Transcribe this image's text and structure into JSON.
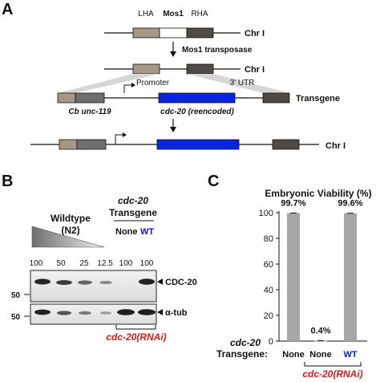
{
  "panelA": {
    "letter": "A",
    "lha": "LHA",
    "mos1": "Mos1",
    "rha": "RHA",
    "chr1_top": "Chr I",
    "transposase": "Mos1 transposase",
    "chr1_mid": "Chr I",
    "promoter": "Promoter",
    "utr": "3' UTR",
    "transgene": "Transgene",
    "cb_unc": "Cb unc-119",
    "cdc20_reenc": "cdc-20 (reencoded)",
    "chr1_bottom": "Chr I"
  },
  "panelB": {
    "letter": "B",
    "wildtype": "Wildtype",
    "n2": "(N2)",
    "cdc20_header": "cdc-20",
    "transgene_header": "Transgene",
    "none_label": "None",
    "wt_label": "WT",
    "lanes": [
      "100",
      "50",
      "25",
      "12.5",
      "100",
      "100"
    ],
    "blot1_label": "CDC-20",
    "blot2_label": "α-tub",
    "mw1": "50",
    "mw2": "50",
    "rnai": "cdc-20(RNAi)",
    "colors": {
      "wt_blue": "#1515d6",
      "rnai_red": "#d41c1c",
      "cdc20_blue": "#0a24e6"
    }
  },
  "panelC": {
    "letter": "C",
    "xlabel_line1": "cdc-20",
    "xlabel_line2": "Transgene:",
    "rnai": "cdc-20(RNAi)"
  },
  "chart_data": {
    "type": "bar",
    "title": "Embryonic Viability (%)",
    "categories": [
      "None",
      "None",
      "WT"
    ],
    "values": [
      99.7,
      0.4,
      99.6
    ],
    "value_labels": [
      "99.7%",
      "0.4%",
      "99.6%"
    ],
    "group_label": "cdc-20(RNAi)",
    "yticks": [
      "0",
      "20",
      "40",
      "60",
      "80",
      "100"
    ],
    "ylim": [
      0,
      100
    ],
    "bar_color": "#a6a6a6"
  }
}
